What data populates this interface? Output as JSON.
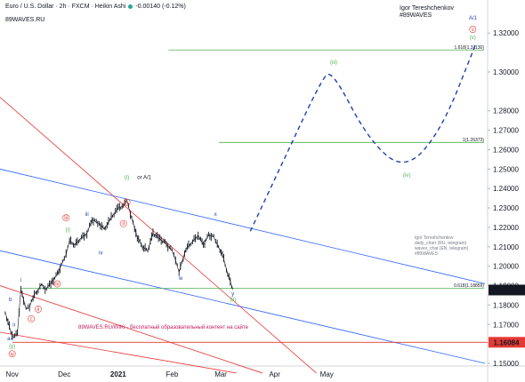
{
  "header": {
    "title": "Euro / U.S. Dollar · 2h · FXCM · Heikin Ashi",
    "change": "-0.00140 (-0.12%)"
  },
  "brand": "89WAVES.RU",
  "author": {
    "name": "Igor Tereshchenkov",
    "tag": "#89WAVES"
  },
  "notes": [
    "Igor Tereshchenkov",
    "daily_chart (RU, telegram)",
    "waves_chat (EN, telegram)",
    "#89WAVES"
  ],
  "wiki_caption": "89WAVES.RU/WIKI - бесплатный образовательный контент на сайте",
  "colors": {
    "up": "#26a69a",
    "down": "#ef5350",
    "candle": "#131722",
    "forecast": "#1e3fb0",
    "fib": "#4caf50",
    "channel_blue": "#2962ff",
    "channel_red": "#e53935",
    "tag_dark": "#131722",
    "tag_red": "#e53935"
  },
  "chart_data": {
    "type": "line",
    "series": [
      {
        "x": [
          "2020-10-28",
          "2020-11-01",
          "2020-11-04",
          "2020-11-06",
          "2020-11-09",
          "2020-11-11",
          "2020-11-13",
          "2020-11-16",
          "2020-11-18",
          "2020-11-20",
          "2020-11-24",
          "2020-11-27",
          "2020-11-30",
          "2020-12-02",
          "2020-12-04",
          "2020-12-07",
          "2020-12-10",
          "2020-12-14",
          "2020-12-17",
          "2020-12-21",
          "2020-12-24",
          "2020-12-28",
          "2021-01-01",
          "2021-01-04",
          "2021-01-06",
          "2021-01-08",
          "2021-01-12",
          "2021-01-15",
          "2021-01-18",
          "2021-01-21",
          "2021-01-25",
          "2021-01-28",
          "2021-02-01",
          "2021-02-03",
          "2021-02-05",
          "2021-02-09",
          "2021-02-12",
          "2021-02-16",
          "2021-02-19",
          "2021-02-22",
          "2021-02-25",
          "2021-02-27",
          "2021-03-02",
          "2021-03-05",
          "2021-03-08"
        ],
        "values": [
          1.176,
          1.164,
          1.165,
          1.188,
          1.178,
          1.179,
          1.184,
          1.188,
          1.191,
          1.188,
          1.192,
          1.196,
          1.202,
          1.206,
          1.213,
          1.211,
          1.214,
          1.217,
          1.224,
          1.222,
          1.219,
          1.225,
          1.23,
          1.231,
          1.234,
          1.227,
          1.215,
          1.21,
          1.208,
          1.217,
          1.214,
          1.212,
          1.208,
          1.203,
          1.197,
          1.209,
          1.212,
          1.216,
          1.211,
          1.216,
          1.215,
          1.211,
          1.206,
          1.196,
          1.188
        ]
      },
      {
        "x": [
          "2021-03-18",
          "2021-04-08",
          "2021-04-28",
          "2021-05-04",
          "2021-05-25",
          "2021-06-15",
          "2021-07-06",
          "2021-07-26"
        ],
        "values": [
          1.218,
          1.258,
          1.296,
          1.301,
          1.265,
          1.249,
          1.27,
          1.315
        ]
      }
    ],
    "y_ticks": [
      "1.32000",
      "1.30000",
      "1.28000",
      "1.27000",
      "1.26000",
      "1.25000",
      "1.24000",
      "1.23000",
      "1.22000",
      "1.21000",
      "1.20000",
      "1.19000",
      "1.18000",
      "1.17000",
      "1.16000",
      "1.15000"
    ],
    "x_ticks": [
      {
        "label": "Nov",
        "date": "2020-11-01"
      },
      {
        "label": "Dec",
        "date": "2020-12-01"
      },
      {
        "label": "2021",
        "date": "2021-01-01"
      },
      {
        "label": "Feb",
        "date": "2021-02-01"
      },
      {
        "label": "Mar",
        "date": "2021-03-01"
      },
      {
        "label": "Apr",
        "date": "2021-04-01"
      },
      {
        "label": "May",
        "date": "2021-05-01"
      }
    ],
    "price_tags": [
      {
        "value": 1.18775,
        "label": "1.18775",
        "style": "dark"
      },
      {
        "value": 1.16084,
        "label": "1.16084",
        "style": "red"
      }
    ],
    "fib_levels": [
      {
        "value": 1.3113,
        "label": "1.618(1.31130)"
      },
      {
        "value": 1.26373,
        "label": "1(1.26373)"
      },
      {
        "value": 1.18859,
        "label": "0.618(1.18859)"
      }
    ],
    "hline_red": 1.16084,
    "channels": {
      "blue": [
        [
          [
            "2020-10-25",
            1.25
          ],
          [
            "2021-07-31",
            1.191
          ]
        ],
        [
          [
            "2020-10-25",
            1.208
          ],
          [
            "2021-07-31",
            1.15
          ]
        ]
      ],
      "red": [
        [
          [
            "2020-10-25",
            1.287
          ],
          [
            "2021-04-25",
            1.145
          ]
        ],
        [
          [
            "2020-10-25",
            1.19
          ],
          [
            "2021-03-25",
            1.145
          ]
        ],
        [
          [
            "2020-10-25",
            1.166
          ],
          [
            "2021-03-10",
            1.145
          ]
        ]
      ]
    },
    "wave_labels": [
      {
        "text": "A/1",
        "date": "2021-07-24",
        "value": 1.327,
        "color": "#1e3fb0"
      },
      {
        "text": "v",
        "date": "2021-07-24",
        "value": 1.321,
        "color": "#e53935",
        "circle": true
      },
      {
        "text": "(v)",
        "date": "2021-07-24",
        "value": 1.317,
        "color": "#4caf50"
      },
      {
        "text": "(iii)",
        "date": "2021-05-05",
        "value": 1.304,
        "color": "#4caf50"
      },
      {
        "text": "(iv)",
        "date": "2021-06-16",
        "value": 1.246,
        "color": "#4caf50"
      },
      {
        "text": "(i)",
        "date": "2021-01-06",
        "value": 1.245,
        "color": "#4caf50"
      },
      {
        "text": "or A/1",
        "date": "2021-01-16",
        "value": 1.245,
        "color": "#131722"
      },
      {
        "text": "x",
        "date": "2021-02-26",
        "value": 1.226,
        "color": "#1e3fb0"
      },
      {
        "text": "w",
        "date": "2021-02-06",
        "value": 1.193,
        "color": "#1e3fb0"
      },
      {
        "text": "y",
        "date": "2021-03-08",
        "value": 1.185,
        "color": "#1e3fb0"
      },
      {
        "text": "(ii)",
        "date": "2021-03-08",
        "value": 1.182,
        "color": "#4caf50"
      },
      {
        "text": "iii",
        "date": "2020-12-14",
        "value": 1.226,
        "color": "#1e3fb0"
      },
      {
        "text": "iv",
        "date": "2020-12-22",
        "value": 1.206,
        "color": "#1e3fb0"
      },
      {
        "text": "ii",
        "date": "2020-11-02",
        "value": 1.169,
        "color": "#1e3fb0"
      },
      {
        "text": "i",
        "date": "2020-11-06",
        "value": 1.192,
        "color": "#1e3fb0"
      },
      {
        "text": "b",
        "date": "2020-10-31",
        "value": 1.182,
        "color": "#1e3fb0"
      },
      {
        "text": "a",
        "date": "2020-10-30",
        "value": 1.162,
        "color": "#1e3fb0"
      },
      {
        "text": "c",
        "date": "2020-11-01",
        "value": 1.162,
        "color": "#1e3fb0"
      },
      {
        "text": "(y)",
        "date": "2020-11-01",
        "value": 1.158,
        "color": "#4caf50"
      },
      {
        "text": "iv",
        "date": "2020-11-01",
        "value": 1.154,
        "color": "#e53935",
        "circle": true
      },
      {
        "text": "(i)",
        "date": "2020-12-03",
        "value": 1.218,
        "color": "#4caf50"
      },
      {
        "text": "iii",
        "date": "2020-12-02",
        "value": 1.224,
        "color": "#e53935",
        "circle": true
      },
      {
        "text": "i",
        "date": "2021-01-06",
        "value": 1.232,
        "color": "#e53935",
        "circle": true
      },
      {
        "text": "ii",
        "date": "2021-01-04",
        "value": 1.221,
        "color": "#e53935",
        "circle": true
      },
      {
        "text": "iv",
        "date": "2020-11-27",
        "value": 1.19,
        "color": "#e53935",
        "circle": true
      },
      {
        "text": "ii",
        "date": "2020-11-16",
        "value": 1.177,
        "color": "#e53935",
        "circle": true
      },
      {
        "text": "c",
        "date": "2020-11-12",
        "value": 1.172,
        "color": "#e53935",
        "circle": true
      }
    ]
  }
}
